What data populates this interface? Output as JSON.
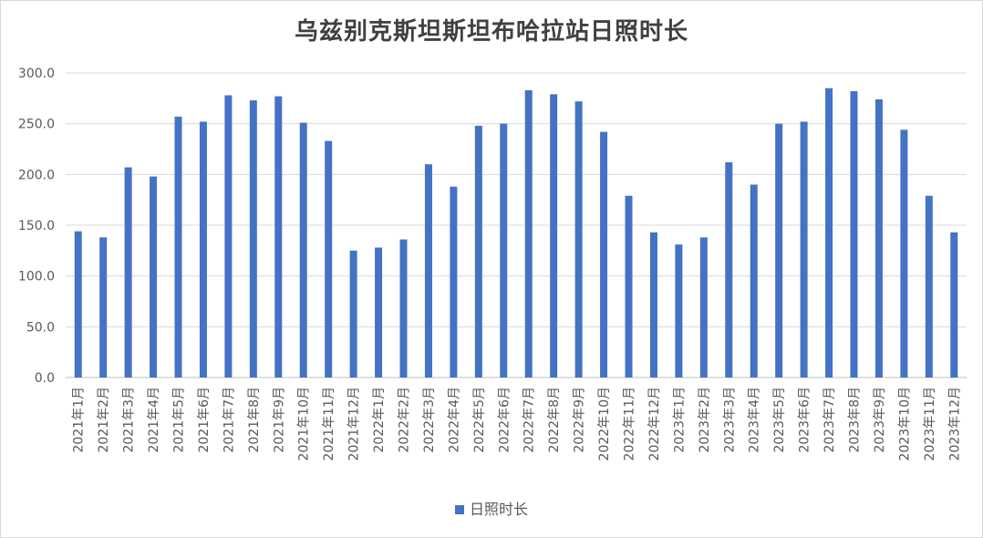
{
  "chart_data": {
    "type": "bar",
    "title": "乌兹别克斯坦斯坦布哈拉站日照时长",
    "xlabel": "",
    "ylabel": "",
    "ylim": [
      0,
      300
    ],
    "yticks": [
      "0.0",
      "50.0",
      "100.0",
      "150.0",
      "200.0",
      "250.0",
      "300.0"
    ],
    "grid": true,
    "legend_position": "bottom",
    "color": "#4472c4",
    "categories": [
      "2021年1月",
      "2021年2月",
      "2021年3月",
      "2021年4月",
      "2021年5月",
      "2021年6月",
      "2021年7月",
      "2021年8月",
      "2021年9月",
      "2021年10月",
      "2021年11月",
      "2021年12月",
      "2022年1月",
      "2022年2月",
      "2022年3月",
      "2022年4月",
      "2022年5月",
      "2022年6月",
      "2022年7月",
      "2022年8月",
      "2022年9月",
      "2022年10月",
      "2022年11月",
      "2022年12月",
      "2023年1月",
      "2023年2月",
      "2023年3月",
      "2023年4月",
      "2023年5月",
      "2023年6月",
      "2023年7月",
      "2023年8月",
      "2023年9月",
      "2023年10月",
      "2023年11月",
      "2023年12月"
    ],
    "series": [
      {
        "name": "日照时长",
        "values": [
          144,
          138,
          207,
          198,
          257,
          252,
          278,
          273,
          277,
          251,
          233,
          125,
          128,
          136,
          210,
          188,
          248,
          250,
          283,
          279,
          272,
          242,
          179,
          143,
          131,
          138,
          212,
          190,
          250,
          252,
          285,
          282,
          274,
          244,
          179,
          143
        ]
      }
    ]
  }
}
